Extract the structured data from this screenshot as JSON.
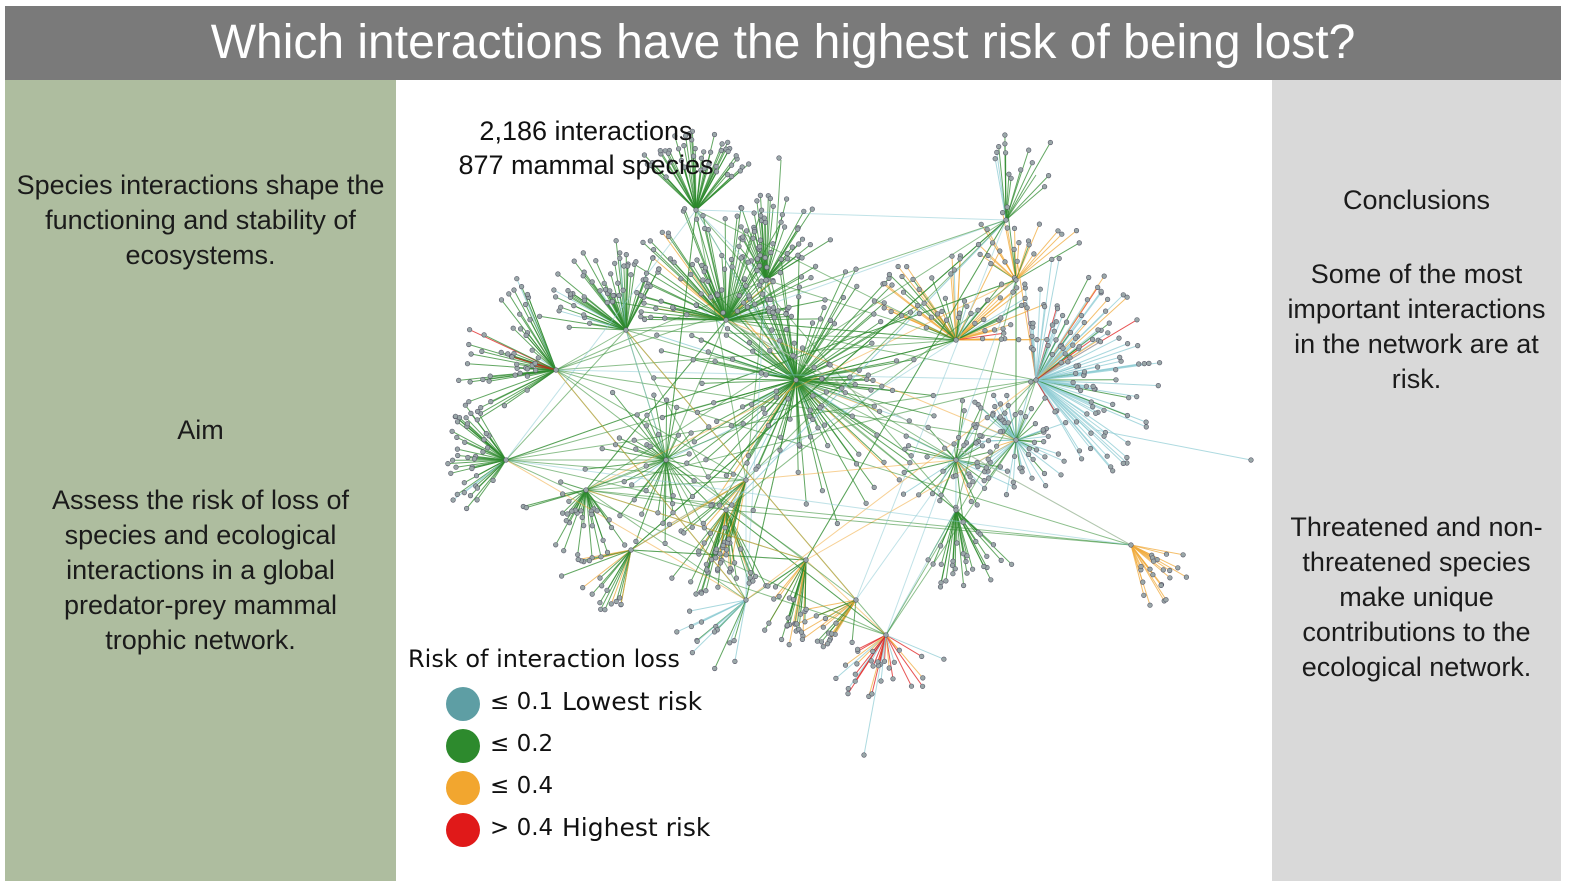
{
  "title": "Which interactions have the highest risk of being lost?",
  "left": {
    "intro": "Species interactions shape the functioning and stability of ecosystems.",
    "aim_heading": "Aim",
    "aim_text": "Assess the risk of loss of species and ecological interactions in a global predator-prey mammal trophic network."
  },
  "center": {
    "stats_interactions": "2,186 interactions",
    "stats_species": "877 mammal species"
  },
  "legend": {
    "title": "Risk of interaction loss",
    "items": [
      {
        "value": "≤ 0.1",
        "label": "Lowest risk",
        "color": "#5e9ea4"
      },
      {
        "value": "≤ 0.2",
        "label": "",
        "color": "#2d8a2d"
      },
      {
        "value": "≤ 0.4",
        "label": "",
        "color": "#f2a62f"
      },
      {
        "value": "> 0.4",
        "label": "Highest risk",
        "color": "#e01919"
      }
    ]
  },
  "right": {
    "heading": "Conclusions",
    "conclusion_1": "Some of the most important interactions in the network are at risk.",
    "conclusion_2": "Threatened and non-threatened species make unique contributions to the ecological network."
  },
  "colors": {
    "title_bar": "#7a7a7a",
    "left_panel": "#aebd9f",
    "right_panel": "#d9d9d9",
    "edge_low": "#8ccbd3",
    "edge_mid": "#2d8a2d",
    "edge_high": "#f0a93a",
    "edge_highest": "#e01919",
    "node": "#9aa7a8"
  }
}
